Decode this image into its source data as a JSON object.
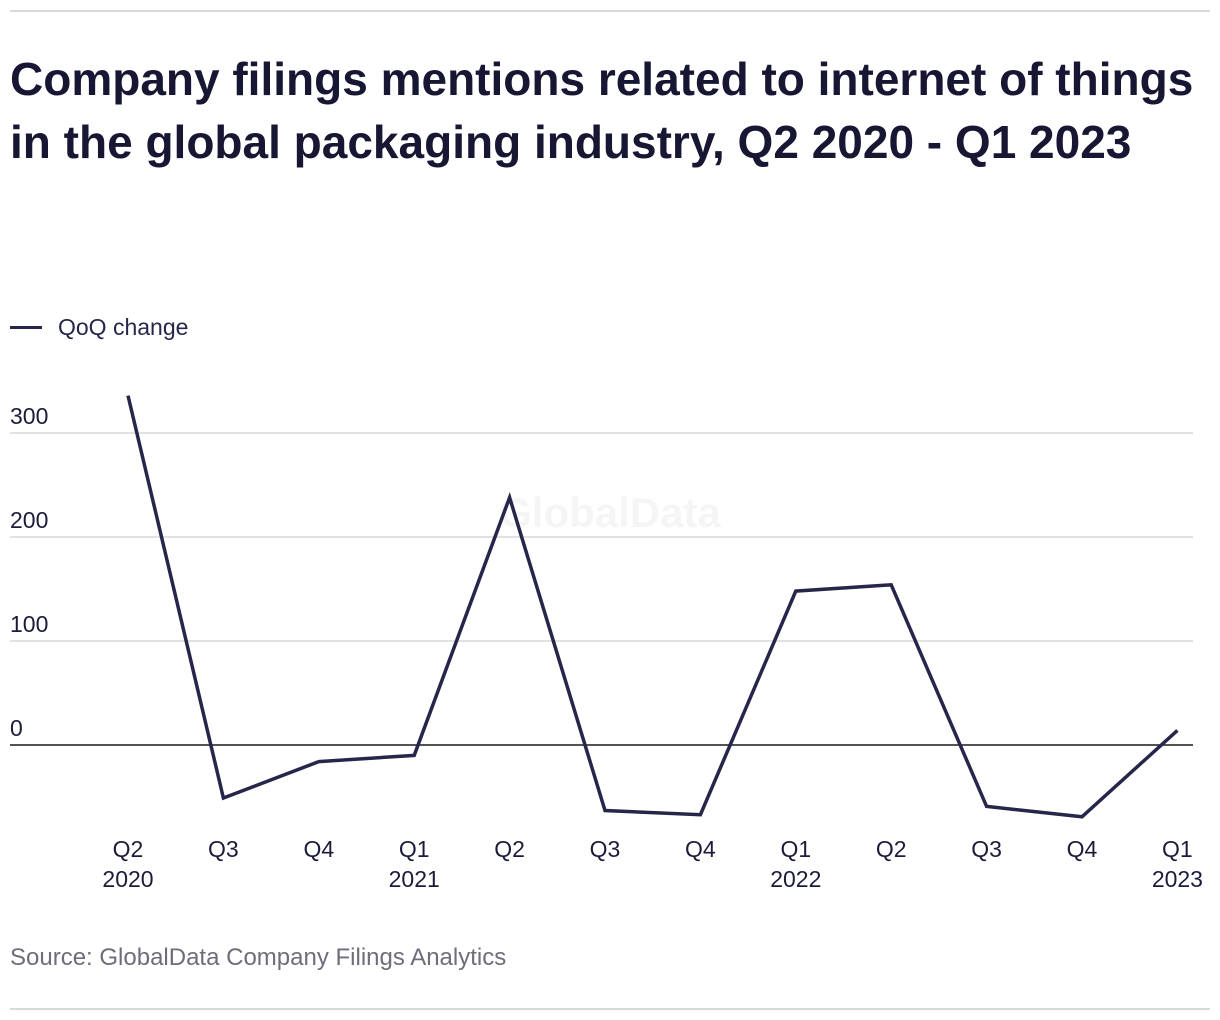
{
  "title": "Company filings mentions related to internet of things in the global packaging industry, Q2 2020 - Q1 2023",
  "source": "Source: GlobalData Company Filings Analytics",
  "watermark": "GlobalData",
  "colors": {
    "line": "#26264a",
    "grid": "#d9d9d9",
    "zero": "#1a1a1a",
    "text": "#1c1c3a"
  },
  "chart_data": {
    "type": "line",
    "title": "Company filings mentions related to internet of things in the global packaging industry, Q2 2020 - Q1 2023",
    "legend": "top-left",
    "grid": true,
    "ylim": [
      -80,
      345
    ],
    "yticks": [
      0,
      100,
      200,
      300
    ],
    "categories": [
      [
        "Q2",
        "2020"
      ],
      [
        "Q3",
        ""
      ],
      [
        "Q4",
        ""
      ],
      [
        "Q1",
        "2021"
      ],
      [
        "Q2",
        ""
      ],
      [
        "Q3",
        ""
      ],
      [
        "Q4",
        ""
      ],
      [
        "Q1",
        "2022"
      ],
      [
        "Q2",
        ""
      ],
      [
        "Q3",
        ""
      ],
      [
        "Q4",
        ""
      ],
      [
        "Q1",
        "2023"
      ]
    ],
    "series": [
      {
        "name": "QoQ change",
        "values": [
          336,
          -51,
          -16,
          -10,
          238,
          -63,
          -67,
          148,
          154,
          -59,
          -69,
          14
        ]
      }
    ]
  }
}
